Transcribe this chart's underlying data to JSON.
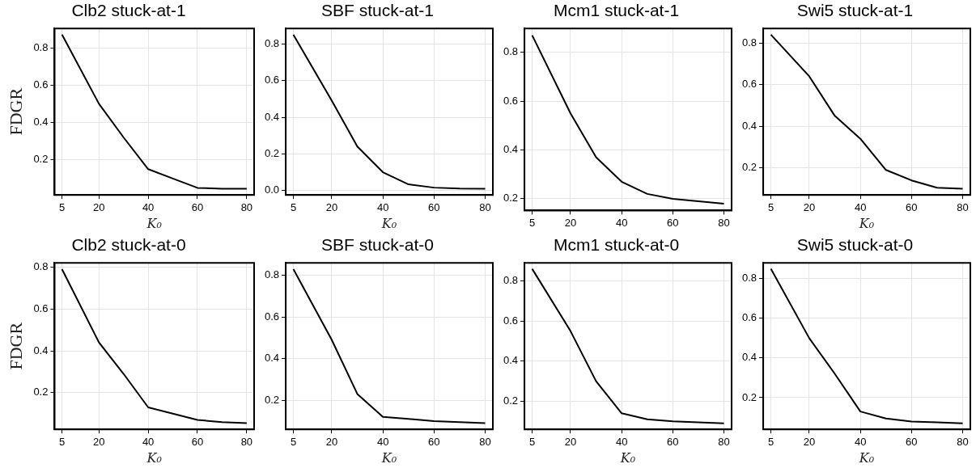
{
  "chart_data": [
    {
      "type": "line",
      "title": "Clb2 stuck-at-1",
      "xlabel": "K₀",
      "ylabel": "FDGR",
      "x": [
        5,
        20,
        30,
        40,
        50,
        60,
        70,
        80
      ],
      "series": [
        {
          "color": "#000000",
          "values": [
            0.87,
            0.5,
            0.32,
            0.15,
            0.1,
            0.05,
            0.045,
            0.045
          ]
        }
      ],
      "xlim": [
        2,
        83
      ],
      "xticks": [
        5,
        20,
        40,
        60,
        80
      ],
      "ylim": [
        0.012,
        0.903
      ],
      "yticks": [
        0.2,
        0.4,
        0.6,
        0.8
      ],
      "grid": true,
      "marker": "none",
      "line_style": "solid"
    },
    {
      "type": "line",
      "title": "SBF stuck-at-1",
      "xlabel": "K₀",
      "x": [
        5,
        20,
        30,
        40,
        50,
        60,
        70,
        80
      ],
      "series": [
        {
          "color": "#000000",
          "values": [
            0.85,
            0.49,
            0.24,
            0.1,
            0.034,
            0.016,
            0.011,
            0.01
          ]
        }
      ],
      "xlim": [
        2,
        83
      ],
      "xticks": [
        5,
        20,
        40,
        60,
        80
      ],
      "ylim": [
        -0.024,
        0.884
      ],
      "yticks": [
        {
          "value": 0,
          "label": "0.0"
        },
        0.2,
        0.4,
        0.6,
        0.8
      ],
      "grid": true,
      "marker": "none",
      "line_style": "solid"
    },
    {
      "type": "line",
      "title": "Mcm1 stuck-at-1",
      "x": [
        5,
        20,
        30,
        40,
        50,
        60,
        70,
        80
      ],
      "series": [
        {
          "color": "#000000",
          "values": [
            0.87,
            0.55,
            0.37,
            0.27,
            0.22,
            0.2,
            0.19,
            0.18
          ]
        }
      ],
      "xlim": [
        2,
        83
      ],
      "xticks": [
        5,
        20,
        40,
        60,
        80
      ],
      "ylim": [
        0.152,
        0.898
      ],
      "yticks": [
        0.2,
        0.4,
        0.6,
        0.8
      ],
      "grid": true,
      "marker": "none",
      "line_style": "solid"
    },
    {
      "type": "line",
      "title": "Swi5 stuck-at-1",
      "xlabel": "K₀",
      "x": [
        5,
        20,
        30,
        40,
        50,
        60,
        70,
        80
      ],
      "series": [
        {
          "color": "#000000",
          "values": [
            0.84,
            0.64,
            0.45,
            0.34,
            0.19,
            0.14,
            0.105,
            0.1
          ]
        }
      ],
      "xlim": [
        2,
        83
      ],
      "xticks": [
        5,
        20,
        40,
        60,
        80
      ],
      "ylim": [
        0.07,
        0.87
      ],
      "yticks": [
        0.2,
        0.4,
        0.6,
        0.8
      ],
      "grid": true,
      "marker": "none",
      "line_style": "solid"
    },
    {
      "type": "line",
      "title": "Clb2 stuck-at-0",
      "xlabel": "K₀",
      "ylabel": "FDGR",
      "x": [
        5,
        20,
        30,
        40,
        50,
        60,
        70,
        80
      ],
      "series": [
        {
          "color": "#000000",
          "values": [
            0.79,
            0.44,
            0.29,
            0.13,
            0.1,
            0.07,
            0.06,
            0.055
          ]
        }
      ],
      "xlim": [
        2,
        83
      ],
      "xticks": [
        5,
        20,
        40,
        60,
        80
      ],
      "ylim": [
        0.025,
        0.82
      ],
      "yticks": [
        0.2,
        0.4,
        0.6,
        0.8
      ],
      "grid": true,
      "marker": "none",
      "line_style": "solid"
    },
    {
      "type": "line",
      "title": "SBF stuck-at-0",
      "xlabel": "K₀",
      "x": [
        5,
        20,
        30,
        40,
        50,
        60,
        70,
        80
      ],
      "series": [
        {
          "color": "#000000",
          "values": [
            0.83,
            0.49,
            0.23,
            0.12,
            0.11,
            0.1,
            0.095,
            0.09
          ]
        }
      ],
      "xlim": [
        2,
        83
      ],
      "xticks": [
        5,
        20,
        40,
        60,
        80
      ],
      "ylim": [
        0.06,
        0.86
      ],
      "yticks": [
        0.2,
        0.4,
        0.6,
        0.8
      ],
      "grid": true,
      "marker": "none",
      "line_style": "solid"
    },
    {
      "type": "line",
      "title": "Mcm1 stuck-at-0",
      "xlabel": "K₀",
      "x": [
        5,
        20,
        30,
        40,
        50,
        60,
        70,
        80
      ],
      "series": [
        {
          "color": "#000000",
          "values": [
            0.86,
            0.55,
            0.3,
            0.14,
            0.11,
            0.1,
            0.095,
            0.09
          ]
        }
      ],
      "xlim": [
        2,
        83
      ],
      "xticks": [
        5,
        20,
        40,
        60,
        80
      ],
      "ylim": [
        0.06,
        0.89
      ],
      "yticks": [
        0.2,
        0.4,
        0.6,
        0.8
      ],
      "grid": true,
      "marker": "none",
      "line_style": "solid"
    },
    {
      "type": "line",
      "title": "Swi5 stuck-at-0",
      "xlabel": "K₀",
      "x": [
        5,
        20,
        30,
        40,
        50,
        60,
        70,
        80
      ],
      "series": [
        {
          "color": "#000000",
          "values": [
            0.85,
            0.5,
            0.32,
            0.13,
            0.095,
            0.08,
            0.075,
            0.07
          ]
        }
      ],
      "xlim": [
        2,
        83
      ],
      "xticks": [
        5,
        20,
        40,
        60,
        80
      ],
      "ylim": [
        0.04,
        0.88
      ],
      "yticks": [
        0.2,
        0.4,
        0.6,
        0.8
      ],
      "grid": true,
      "marker": "none",
      "line_style": "solid"
    }
  ]
}
